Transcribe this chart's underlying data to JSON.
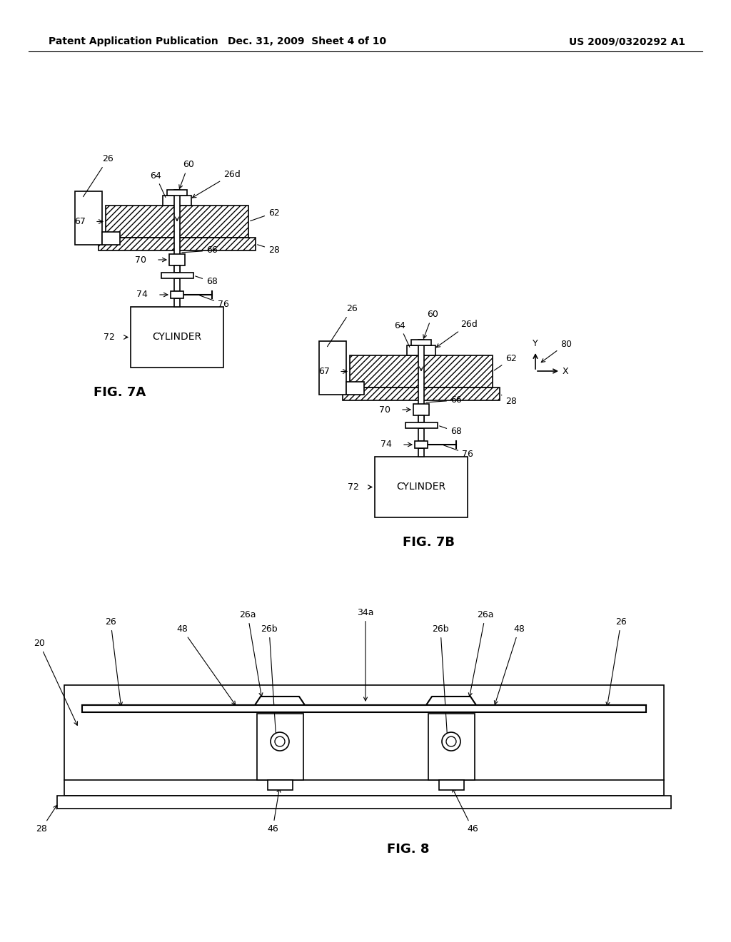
{
  "bg_color": "#ffffff",
  "header_left": "Patent Application Publication",
  "header_mid": "Dec. 31, 2009  Sheet 4 of 10",
  "header_right": "US 2009/0320292 A1",
  "fig7a_label": "FIG. 7A",
  "fig7b_label": "FIG. 7B",
  "fig8_label": "FIG. 8",
  "cylinder_text": "CYLINDER",
  "hatch_pattern": "////",
  "line_color": "#000000",
  "text_color": "#000000",
  "fig_label_fontsize": 13,
  "header_fontsize": 10,
  "annotation_fontsize": 9,
  "cylinder_fontsize": 10
}
